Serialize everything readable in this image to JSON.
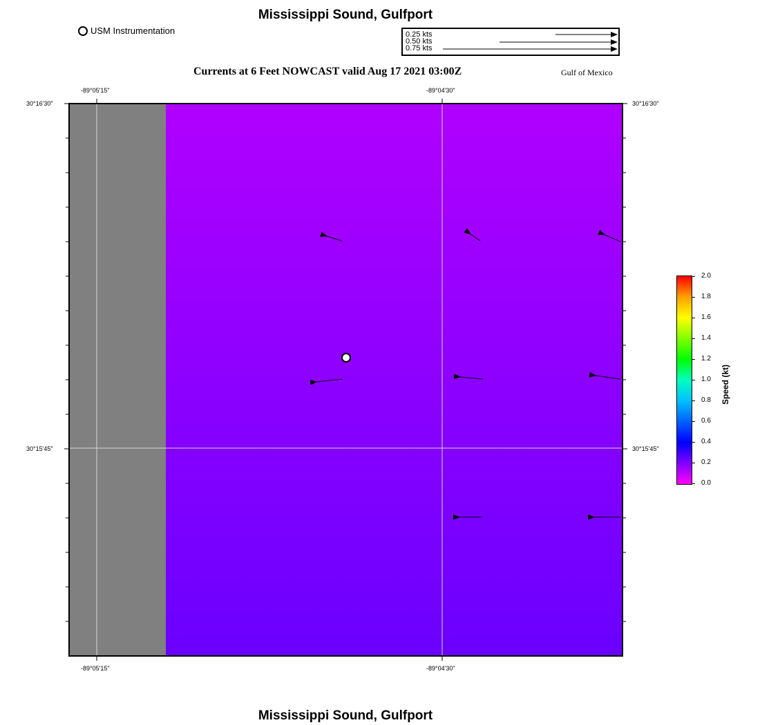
{
  "title": "Mississippi Sound, Gulfport",
  "footer_title": "Mississippi Sound, Gulfport",
  "legend": {
    "usm_label": "USM Instrumentation"
  },
  "vector_scale": [
    {
      "label": "0.25 kts",
      "speed": 0.25
    },
    {
      "label": "0.50 kts",
      "speed": 0.5
    },
    {
      "label": "0.75 kts",
      "speed": 0.75
    }
  ],
  "subtitle": "Currents at 6 Feet NOWCAST valid Aug 17 2021 03:00Z",
  "region_label": "Gulf of Mexico",
  "axes": {
    "lon_top": [
      "-89°05'15\"",
      "-89°04'30\""
    ],
    "lon_bottom": [
      "-89°05'15\"",
      "-89°04'30\""
    ],
    "lat_left": [
      "30°16'30\"",
      "30°15'45\""
    ],
    "lat_right": [
      "30°16'30\"",
      "30°15'45\""
    ]
  },
  "colorbar": {
    "title": "Speed (kt)",
    "ticks": [
      "2.0",
      "1.8",
      "1.6",
      "1.4",
      "1.2",
      "1.0",
      "0.8",
      "0.6",
      "0.4",
      "0.2",
      "0.0"
    ]
  },
  "colors": {
    "land": "#808080",
    "water_top": "#b000ff",
    "water_bottom": "#6a00ff",
    "grid": "#d8d8d8"
  },
  "current_vectors_description": "Westward currents at roughly 0.1-0.2 kt"
}
